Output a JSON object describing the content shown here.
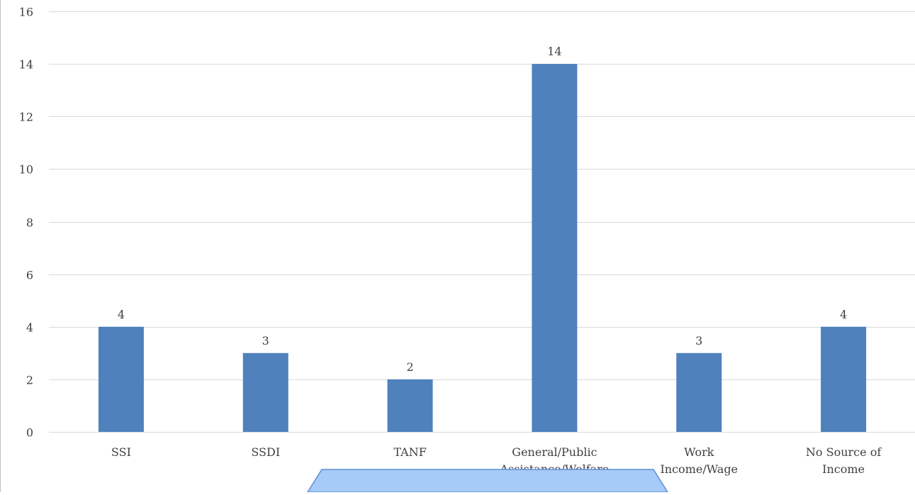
{
  "chart_data": {
    "type": "bar",
    "title": "",
    "xlabel": "",
    "ylabel": "",
    "categories": [
      [
        "SSI"
      ],
      [
        "SSDI"
      ],
      [
        "TANF"
      ],
      [
        "General/Public",
        "Assistance/Welfare"
      ],
      [
        "Work",
        "Income/Wage"
      ],
      [
        "No Source of",
        "Income"
      ]
    ],
    "values": [
      4,
      3,
      2,
      14,
      3,
      4
    ],
    "ylim": [
      0,
      16
    ],
    "yticks": [
      0,
      2,
      4,
      6,
      8,
      10,
      12,
      14,
      16
    ],
    "grid": true,
    "data_labels": true,
    "bar_color": "#4f81bd",
    "grid_color": "#d9d9d9",
    "text_color": "#404040",
    "callout_color": "#a6cbf7",
    "callout_border": "#5b8fd6"
  }
}
